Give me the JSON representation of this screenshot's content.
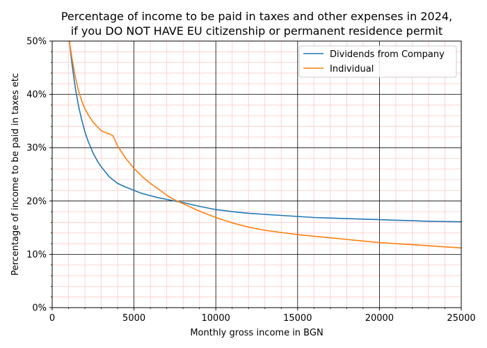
{
  "chart_data": {
    "type": "line",
    "title": [
      "Percentage of income to be paid in taxes and other expenses in 2024,",
      "if you DO NOT HAVE EU citizenship or permanent residence permit"
    ],
    "xlabel": "Monthly gross income in BGN",
    "ylabel": "Percentage of income to be paid in taxes etc",
    "xlim": [
      0,
      25000
    ],
    "ylim": [
      0,
      50
    ],
    "x_ticks": [
      0,
      5000,
      10000,
      15000,
      20000,
      25000
    ],
    "x_tick_labels": [
      "0",
      "5000",
      "10000",
      "15000",
      "20000",
      "25000"
    ],
    "y_ticks": [
      0,
      10,
      20,
      30,
      40,
      50
    ],
    "y_tick_labels": [
      "0%",
      "10%",
      "20%",
      "30%",
      "40%",
      "50%"
    ],
    "grid": {
      "major": true,
      "minor": true,
      "major_color": "#000000",
      "minor_color": "#ffc8c8"
    },
    "legend_position": "top-right",
    "series": [
      {
        "name": "Dividends from Company",
        "color": "#1f77b4",
        "x": [
          1050,
          1200,
          1400,
          1600,
          1800,
          2000,
          2200,
          2500,
          2800,
          3000,
          3500,
          4000,
          4500,
          5000,
          5500,
          6000,
          6500,
          7000,
          7500,
          8000,
          9000,
          10000,
          11000,
          12000,
          13000,
          14000,
          15000,
          16000,
          17000,
          18000,
          19000,
          20000,
          21000,
          22000,
          23000,
          24000,
          25000
        ],
        "y": [
          50.0,
          46.0,
          41.5,
          38.0,
          35.3,
          33.0,
          31.2,
          29.0,
          27.3,
          26.4,
          24.5,
          23.3,
          22.6,
          22.0,
          21.4,
          21.0,
          20.6,
          20.3,
          20.0,
          19.7,
          19.0,
          18.4,
          18.0,
          17.7,
          17.5,
          17.3,
          17.1,
          16.9,
          16.8,
          16.7,
          16.6,
          16.5,
          16.4,
          16.3,
          16.2,
          16.15,
          16.1
        ]
      },
      {
        "name": "Individual",
        "color": "#ff7f0e",
        "x": [
          1050,
          1200,
          1400,
          1600,
          1800,
          2000,
          2200,
          2500,
          2800,
          3000,
          3300,
          3700,
          4000,
          4500,
          5000,
          5500,
          6000,
          6500,
          7000,
          7500,
          8000,
          9000,
          10000,
          11000,
          12000,
          13000,
          14000,
          15000,
          16000,
          17000,
          18000,
          19000,
          20000,
          21000,
          22000,
          23000,
          24000,
          25000
        ],
        "y": [
          50.0,
          47.0,
          43.5,
          40.8,
          38.8,
          37.3,
          36.2,
          34.8,
          33.8,
          33.2,
          32.8,
          32.3,
          30.3,
          28.0,
          26.1,
          24.6,
          23.3,
          22.2,
          21.1,
          20.2,
          19.5,
          18.1,
          16.9,
          15.9,
          15.1,
          14.5,
          14.1,
          13.7,
          13.4,
          13.1,
          12.8,
          12.5,
          12.2,
          12.0,
          11.8,
          11.6,
          11.4,
          11.2
        ]
      }
    ]
  }
}
